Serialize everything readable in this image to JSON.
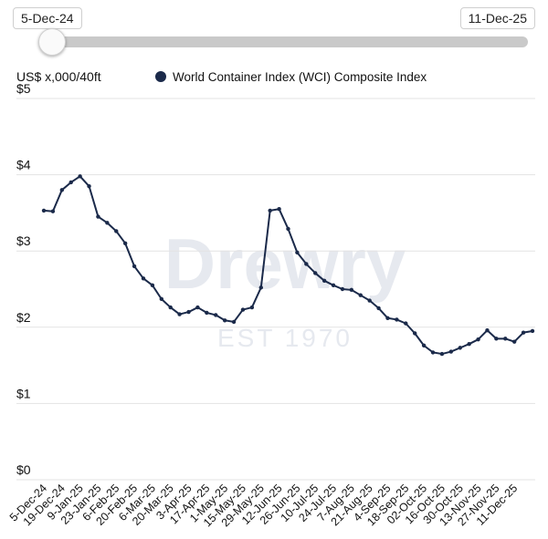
{
  "range_selector": {
    "start_label": "5-Dec-24",
    "end_label": "11-Dec-25",
    "position": 0.0
  },
  "watermark": {
    "brand": "Drewry",
    "tagline": "EST 1970"
  },
  "colors": {
    "series": "#1b2a4a",
    "grid": "#e3e3e3",
    "slider_track": "#c9c9c9"
  },
  "chart_data": {
    "type": "line",
    "ylabel": "US$ x,000/40ft",
    "ylim": [
      0,
      5
    ],
    "yticks": [
      {
        "value": 0,
        "label": "$0"
      },
      {
        "value": 1,
        "label": "$1"
      },
      {
        "value": 2,
        "label": "$2"
      },
      {
        "value": 3,
        "label": "$3"
      },
      {
        "value": 4,
        "label": "$4"
      },
      {
        "value": 5,
        "label": "$5"
      }
    ],
    "grid": true,
    "legend_position": "top",
    "x_tick_labels": [
      "5-Dec-24",
      "19-Dec-24",
      "9-Jan-25",
      "23-Jan-25",
      "6-Feb-25",
      "20-Feb-25",
      "6-Mar-25",
      "20-Mar-25",
      "3-Apr-25",
      "17-Apr-25",
      "1-May-25",
      "15-May-25",
      "29-May-25",
      "12-Jun-25",
      "26-Jun-25",
      "10-Jul-25",
      "24-Jul-25",
      "7-Aug-25",
      "21-Aug-25",
      "4-Sep-25",
      "18-Sep-25",
      "02-Oct-25",
      "16-Oct-25",
      "30-Oct-25",
      "13-Nov-25",
      "27-Nov-25",
      "11-Dec-25"
    ],
    "series": [
      {
        "name": "World Container Index (WCI) Composite Index",
        "values": [
          3.53,
          3.52,
          3.8,
          3.9,
          3.98,
          3.85,
          3.45,
          3.37,
          3.26,
          3.1,
          2.8,
          2.64,
          2.55,
          2.37,
          2.26,
          2.17,
          2.2,
          2.26,
          2.19,
          2.16,
          2.09,
          2.07,
          2.23,
          2.26,
          2.52,
          3.53,
          3.55,
          3.29,
          2.98,
          2.83,
          2.71,
          2.61,
          2.55,
          2.5,
          2.49,
          2.42,
          2.35,
          2.25,
          2.12,
          2.1,
          2.05,
          1.92,
          1.76,
          1.67,
          1.65,
          1.68,
          1.73,
          1.78,
          1.84,
          1.96,
          1.85,
          1.85,
          1.81,
          1.93,
          1.95
        ]
      }
    ]
  }
}
